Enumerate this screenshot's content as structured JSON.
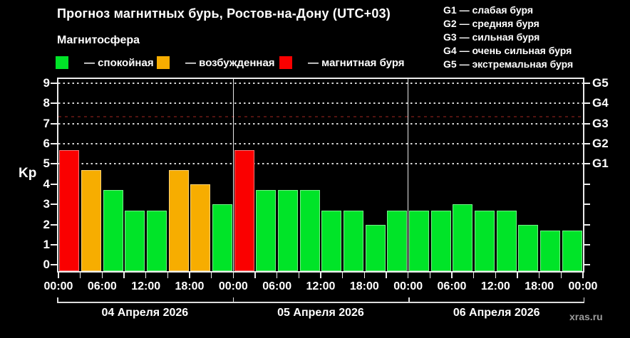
{
  "title": "Прогноз магнитных бурь, Ростов-на-Дону (UTC+03)",
  "source_watermark": "xras.ru",
  "magnetosphere_legend": {
    "heading": "Магнитосфера",
    "items": [
      {
        "status": "quiet",
        "label": "— спокойная",
        "color": "#00e428"
      },
      {
        "status": "excited",
        "label": "— возбужденная",
        "color": "#f7ad00"
      },
      {
        "status": "storm",
        "label": "— магнитная буря",
        "color": "#fa0000"
      }
    ]
  },
  "g_scale_legend": {
    "items": [
      {
        "code": "G1",
        "label": "G1 — слабая буря",
        "kp": 5
      },
      {
        "code": "G2",
        "label": "G2 — средняя буря",
        "kp": 6
      },
      {
        "code": "G3",
        "label": "G3 — сильная буря",
        "kp": 7
      },
      {
        "code": "G4",
        "label": "G4 — очень сильная буря",
        "kp": 8
      },
      {
        "code": "G5",
        "label": "G5 — экстремальная буря",
        "kp": 9
      }
    ]
  },
  "chart_data": {
    "type": "bar",
    "title": "Прогноз магнитных бурь, Ростов-на-Дону (UTC+03)",
    "ylabel": "Kp",
    "ylim": [
      0,
      9.35
    ],
    "y_ticks": [
      0,
      1,
      2,
      3,
      4,
      5,
      6,
      7,
      8,
      9
    ],
    "grid_levels_kp": [
      5,
      6,
      7,
      8,
      9
    ],
    "threshold_line_kp": 7.35,
    "grid": "dotted",
    "legend_position": "top-left",
    "bar_interval_hours": 3,
    "x_tick_labels": [
      "00:00",
      "06:00",
      "12:00",
      "18:00",
      "00:00",
      "06:00",
      "12:00",
      "18:00",
      "00:00",
      "06:00",
      "12:00",
      "18:00",
      "00:00"
    ],
    "status_colors": {
      "quiet": "#00e428",
      "excited": "#f7ad00",
      "storm": "#fa0000"
    },
    "status_thresholds": {
      "excited_min_kp": 4,
      "storm_min_kp": 5
    },
    "days": [
      {
        "date": "04 Апреля 2026",
        "values": [
          5.7,
          4.7,
          3.7,
          2.7,
          2.7,
          4.7,
          4.0,
          3.0
        ],
        "statuses": [
          "storm",
          "excited",
          "quiet",
          "quiet",
          "quiet",
          "excited",
          "excited",
          "quiet"
        ]
      },
      {
        "date": "05 Апреля 2026",
        "values": [
          5.7,
          3.7,
          3.7,
          3.7,
          2.7,
          2.7,
          2.0,
          2.7
        ],
        "statuses": [
          "storm",
          "quiet",
          "quiet",
          "quiet",
          "quiet",
          "quiet",
          "quiet",
          "quiet"
        ]
      },
      {
        "date": "06 Апреля 2026",
        "values": [
          2.7,
          2.7,
          3.0,
          2.7,
          2.7,
          2.0,
          1.7,
          1.7
        ],
        "statuses": [
          "quiet",
          "quiet",
          "quiet",
          "quiet",
          "quiet",
          "quiet",
          "quiet",
          "quiet"
        ]
      }
    ]
  }
}
